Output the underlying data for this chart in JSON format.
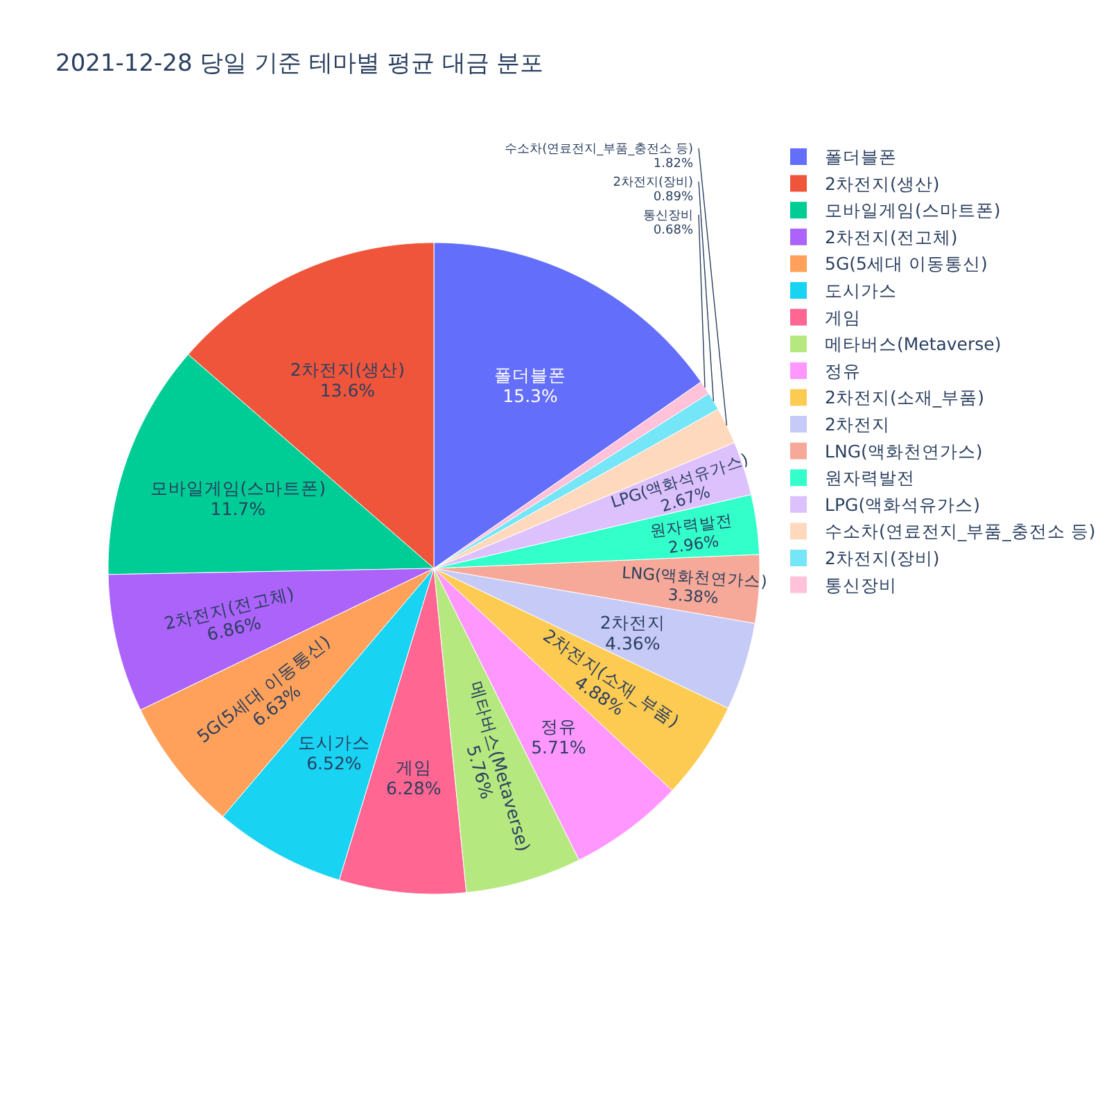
{
  "chart_data": {
    "type": "pie",
    "title": "2021-12-28 당일 기준 테마별 평균 대금 분포",
    "categories": [
      "폴더블폰",
      "2차전지(생산)",
      "모바일게임(스마트폰)",
      "2차전지(전고체)",
      "5G(5세대 이동통신)",
      "도시가스",
      "게임",
      "메타버스(Metaverse)",
      "정유",
      "2차전지(소재_부품)",
      "2차전지",
      "LNG(액화천연가스)",
      "원자력발전",
      "LPG(액화석유가스)",
      "수소차(연료전지_부품_충전소 등)",
      "2차전지(장비)",
      "통신장비"
    ],
    "values": [
      15.3,
      13.6,
      11.7,
      6.86,
      6.63,
      6.52,
      6.28,
      5.76,
      5.71,
      4.88,
      4.36,
      3.38,
      2.96,
      2.67,
      1.82,
      0.89,
      0.68
    ],
    "value_labels": [
      "15.3%",
      "13.6%",
      "11.7%",
      "6.86%",
      "6.63%",
      "6.52%",
      "6.28%",
      "5.76%",
      "5.71%",
      "4.88%",
      "4.36%",
      "3.38%",
      "2.96%",
      "2.67%",
      "1.82%",
      "0.89%",
      "0.68%"
    ],
    "colors": [
      "#636efa",
      "#ef553b",
      "#00cc96",
      "#ab63fa",
      "#ffa15a",
      "#19d3f3",
      "#ff6692",
      "#b6e880",
      "#ff97ff",
      "#fecb52",
      "#c6caf7",
      "#f6a899",
      "#33ffca",
      "#ddc1fd",
      "#ffd9bd",
      "#75e5f8",
      "#ffc2d9"
    ],
    "legend": "top right"
  }
}
